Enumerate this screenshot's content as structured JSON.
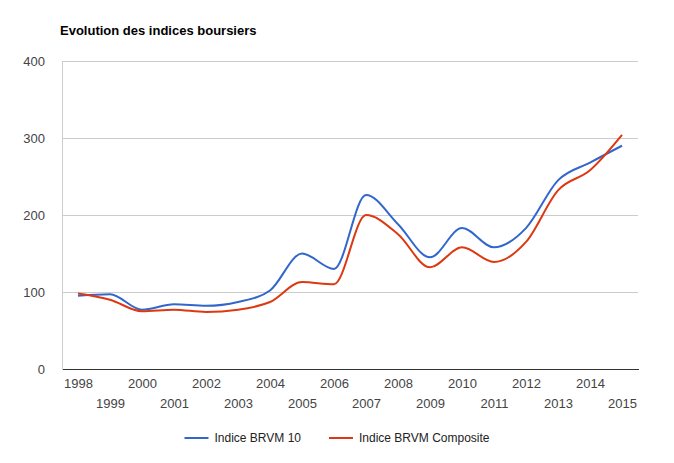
{
  "chart_data": {
    "type": "line",
    "title": "Evolution des indices boursiers",
    "x": [
      1998,
      1999,
      2000,
      2001,
      2002,
      2003,
      2004,
      2005,
      2006,
      2007,
      2008,
      2009,
      2010,
      2011,
      2012,
      2013,
      2014,
      2015
    ],
    "series": [
      {
        "name": "Indice BRVM 10",
        "color": "#3366cc",
        "values": [
          95,
          97,
          77,
          84,
          82,
          87,
          102,
          150,
          130,
          226,
          188,
          145,
          183,
          158,
          183,
          245,
          268,
          290
        ]
      },
      {
        "name": "Indice BRVM Composite",
        "color": "#dc3912",
        "values": [
          98,
          90,
          75,
          77,
          74,
          77,
          87,
          113,
          110,
          200,
          175,
          132,
          158,
          139,
          165,
          232,
          258,
          304
        ]
      }
    ],
    "xlim": [
      1997.5,
      2015.5
    ],
    "xticks": [
      1998,
      1999,
      2000,
      2001,
      2002,
      2003,
      2004,
      2005,
      2006,
      2007,
      2008,
      2009,
      2010,
      2011,
      2012,
      2013,
      2014,
      2015
    ],
    "ylim": [
      0,
      400
    ],
    "yticks": [
      0,
      100,
      200,
      300,
      400
    ],
    "grid": true,
    "legend": "bottom"
  }
}
